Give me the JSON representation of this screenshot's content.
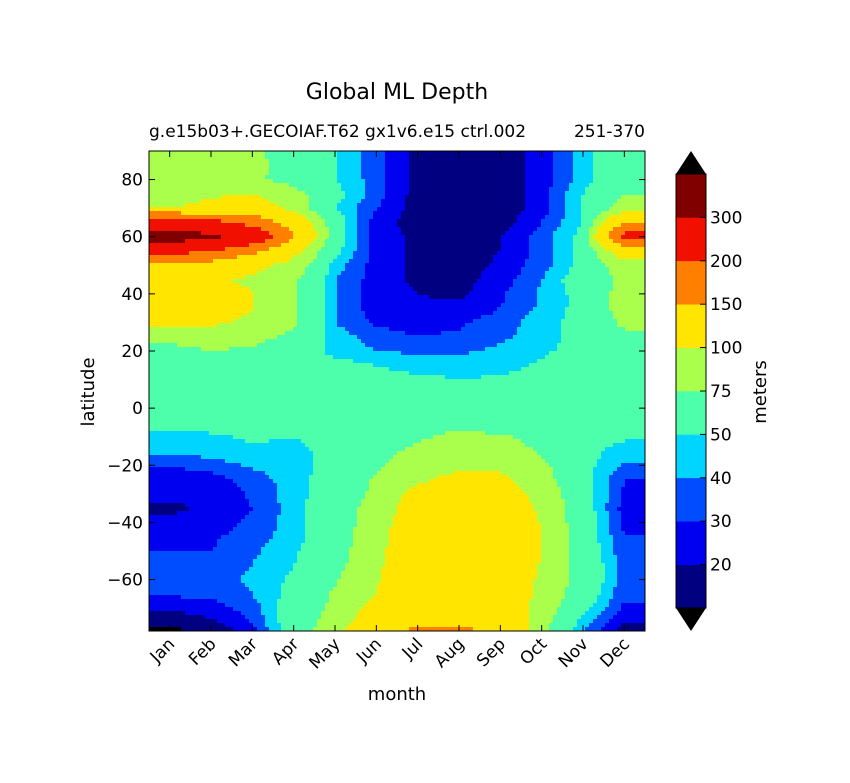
{
  "chart_data": {
    "type": "contourf",
    "title": "Global ML Depth",
    "subtitle": "g.e15b03+.GECOIAF.T62 gx1v6.e15 ctrl.002",
    "subtitle_right": "251-370",
    "xlabel": "month",
    "ylabel": "latitude",
    "months": [
      "Jan",
      "Feb",
      "Mar",
      "Apr",
      "May",
      "Jun",
      "Jul",
      "Aug",
      "Sep",
      "Oct",
      "Nov",
      "Dec"
    ],
    "xlim": [
      0.5,
      12.5
    ],
    "ylim": [
      -78,
      90
    ],
    "yticks": [
      80,
      60,
      40,
      20,
      0,
      -20,
      -40,
      -60
    ],
    "ytick_labels": [
      "80",
      "60",
      "40",
      "20",
      "0",
      "−20",
      "−40",
      "−60"
    ],
    "colorbar": {
      "label": "meters",
      "levels": [
        10,
        20,
        30,
        40,
        50,
        75,
        100,
        150,
        200,
        300,
        400
      ],
      "tick_labels": [
        "20",
        "30",
        "40",
        "50",
        "75",
        "100",
        "150",
        "200",
        "300"
      ],
      "colors": [
        "#000080",
        "#0000f1",
        "#004dff",
        "#00d5ff",
        "#4dffaa",
        "#aaff4d",
        "#ffe500",
        "#ff8000",
        "#f10f00",
        "#800000"
      ],
      "extend_low_color": "#000000",
      "extend_high_color": "#000000"
    },
    "field": {
      "lat": [
        90,
        85,
        80,
        75,
        70,
        65,
        60,
        55,
        50,
        45,
        40,
        35,
        30,
        25,
        20,
        15,
        10,
        5,
        0,
        -5,
        -10,
        -15,
        -20,
        -25,
        -30,
        -35,
        -40,
        -45,
        -50,
        -55,
        -60,
        -65,
        -70,
        -75,
        -78
      ],
      "rows": [
        [
          80,
          90,
          80,
          60,
          50,
          35,
          15,
          12,
          12,
          25,
          45,
          65
        ],
        [
          80,
          95,
          85,
          60,
          50,
          35,
          15,
          12,
          12,
          25,
          45,
          65
        ],
        [
          80,
          90,
          80,
          65,
          50,
          35,
          15,
          12,
          12,
          25,
          45,
          65
        ],
        [
          85,
          95,
          100,
          85,
          55,
          35,
          15,
          12,
          12,
          25,
          50,
          75
        ],
        [
          100,
          110,
          120,
          90,
          50,
          30,
          15,
          12,
          12,
          25,
          50,
          85
        ],
        [
          250,
          220,
          180,
          130,
          60,
          25,
          15,
          12,
          15,
          30,
          50,
          150
        ],
        [
          350,
          320,
          250,
          150,
          60,
          25,
          18,
          15,
          20,
          35,
          55,
          220
        ],
        [
          220,
          200,
          160,
          110,
          55,
          25,
          18,
          15,
          20,
          35,
          55,
          120
        ],
        [
          140,
          130,
          110,
          90,
          45,
          25,
          18,
          15,
          22,
          35,
          55,
          90
        ],
        [
          110,
          105,
          95,
          80,
          40,
          25,
          18,
          15,
          25,
          40,
          60,
          80
        ],
        [
          120,
          115,
          100,
          80,
          40,
          25,
          20,
          18,
          28,
          42,
          55,
          85
        ],
        [
          120,
          115,
          100,
          80,
          40,
          25,
          22,
          22,
          30,
          42,
          55,
          85
        ],
        [
          110,
          105,
          95,
          78,
          40,
          28,
          25,
          28,
          35,
          45,
          55,
          80
        ],
        [
          80,
          85,
          82,
          70,
          45,
          35,
          30,
          32,
          38,
          45,
          55,
          70
        ],
        [
          70,
          75,
          72,
          62,
          45,
          40,
          38,
          38,
          42,
          48,
          55,
          65
        ],
        [
          62,
          65,
          62,
          58,
          55,
          50,
          45,
          45,
          46,
          52,
          55,
          60
        ],
        [
          55,
          56,
          56,
          55,
          55,
          55,
          53,
          50,
          52,
          55,
          56,
          56
        ],
        [
          55,
          56,
          56,
          55,
          55,
          56,
          56,
          56,
          56,
          56,
          56,
          56
        ],
        [
          55,
          56,
          56,
          55,
          55,
          56,
          56,
          56,
          56,
          56,
          56,
          56
        ],
        [
          55,
          56,
          56,
          55,
          55,
          58,
          65,
          70,
          62,
          56,
          56,
          56
        ],
        [
          45,
          48,
          52,
          50,
          55,
          62,
          72,
          80,
          78,
          66,
          56,
          52
        ],
        [
          42,
          45,
          48,
          46,
          55,
          68,
          80,
          85,
          88,
          72,
          55,
          45
        ],
        [
          30,
          35,
          42,
          45,
          55,
          72,
          85,
          92,
          95,
          80,
          56,
          38
        ],
        [
          25,
          25,
          35,
          45,
          58,
          78,
          95,
          110,
          105,
          85,
          55,
          30
        ],
        [
          22,
          22,
          32,
          45,
          60,
          80,
          110,
          120,
          115,
          92,
          58,
          28
        ],
        [
          18,
          22,
          30,
          45,
          62,
          85,
          115,
          125,
          120,
          95,
          60,
          25
        ],
        [
          22,
          25,
          32,
          45,
          62,
          88,
          120,
          130,
          125,
          98,
          60,
          28
        ],
        [
          28,
          28,
          35,
          45,
          62,
          90,
          125,
          135,
          130,
          100,
          62,
          30
        ],
        [
          30,
          30,
          38,
          48,
          65,
          92,
          125,
          135,
          130,
          100,
          62,
          32
        ],
        [
          35,
          35,
          40,
          50,
          68,
          95,
          125,
          135,
          128,
          98,
          65,
          35
        ],
        [
          35,
          35,
          42,
          52,
          72,
          98,
          125,
          130,
          125,
          95,
          65,
          35
        ],
        [
          32,
          32,
          40,
          55,
          78,
          100,
          125,
          130,
          125,
          92,
          62,
          32
        ],
        [
          22,
          25,
          35,
          60,
          80,
          110,
          130,
          135,
          130,
          88,
          55,
          28
        ],
        [
          12,
          18,
          30,
          62,
          85,
          120,
          140,
          140,
          135,
          85,
          45,
          20
        ],
        [
          8,
          12,
          25,
          60,
          90,
          130,
          160,
          160,
          140,
          80,
          40,
          15
        ]
      ]
    }
  }
}
